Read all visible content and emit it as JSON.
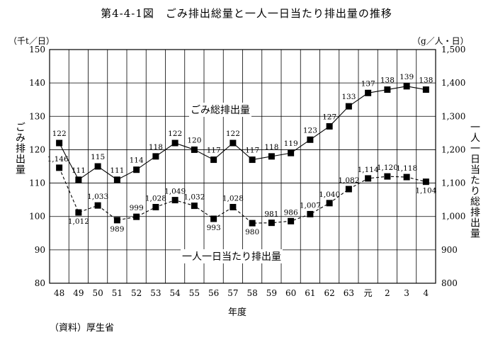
{
  "source_note": "（資料）厚生省",
  "chart_data": {
    "type": "line",
    "title": "第4-4-1図　ごみ排出総量と一人一日当たり排出量の推移",
    "xlabel": "年度",
    "ylabel_left": "ごみ排出量",
    "ylabel_right": "一人一日当たり総排出量",
    "unit_left": "（千t／日）",
    "unit_right": "（g／人・日）",
    "categories": [
      "48",
      "49",
      "50",
      "51",
      "52",
      "53",
      "54",
      "55",
      "56",
      "57",
      "58",
      "59",
      "60",
      "61",
      "62",
      "63",
      "元",
      "2",
      "3",
      "4"
    ],
    "left_axis": {
      "min": 80,
      "max": 150,
      "step": 10,
      "tick_labels": [
        "80",
        "90",
        "100",
        "110",
        "120",
        "130",
        "140",
        "150"
      ]
    },
    "right_axis": {
      "min": 800,
      "max": 1500,
      "step": 100,
      "tick_labels": [
        "800",
        "900",
        "1,000",
        "1,100",
        "1,200",
        "1,300",
        "1,400",
        "1,500"
      ]
    },
    "grid": true,
    "series": [
      {
        "name": "ごみ総排出量",
        "axis": "left",
        "line_style": "solid",
        "values": [
          122,
          111,
          115,
          111,
          114,
          118,
          122,
          120,
          117,
          122,
          117,
          118,
          119,
          123,
          127,
          133,
          137,
          138,
          139,
          138
        ],
        "labels": [
          "122",
          "111",
          "115",
          "111",
          "114",
          "118",
          "122",
          "120",
          "117",
          "122",
          "117",
          "118",
          "119",
          "123",
          "127",
          "133",
          "137",
          "138",
          "139",
          "138"
        ]
      },
      {
        "name": "一人一日当たり排出量",
        "axis": "right",
        "line_style": "dashed",
        "values": [
          1146,
          1012,
          1033,
          989,
          999,
          1028,
          1049,
          1032,
          993,
          1028,
          980,
          981,
          986,
          1007,
          1040,
          1082,
          1114,
          1120,
          1118,
          1104
        ],
        "labels": [
          "1,146",
          "1,012",
          "1,033",
          "989",
          "999",
          "1,028",
          "1,049",
          "1,032",
          "993",
          "1,028",
          "980",
          "981",
          "986",
          "1,007",
          "1,040",
          "1,082",
          "1,114",
          "1,120",
          "1,118",
          "1,104"
        ]
      }
    ]
  }
}
